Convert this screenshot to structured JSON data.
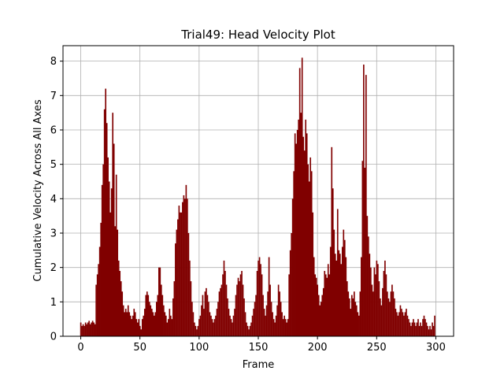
{
  "chart_data": {
    "type": "bar",
    "title": "Trial49: Head Velocity Plot",
    "xlabel": "Frame",
    "ylabel": "Cumulative Velocity Across All Axes",
    "x_ticks": [
      0,
      50,
      100,
      150,
      200,
      250,
      300
    ],
    "y_ticks": [
      0,
      1,
      2,
      3,
      4,
      5,
      6,
      7,
      8
    ],
    "xlim": [
      -15,
      315
    ],
    "ylim": [
      0,
      8.45
    ],
    "grid": true,
    "bar_color": "#800000",
    "x_start": 0,
    "x_step": 1,
    "values": [
      0.4,
      0.3,
      0.35,
      0.3,
      0.4,
      0.35,
      0.4,
      0.45,
      0.35,
      0.4,
      0.45,
      0.4,
      0.35,
      1.5,
      1.8,
      2.1,
      2.6,
      3.3,
      4.4,
      5.0,
      6.6,
      7.2,
      6.2,
      5.2,
      4.5,
      3.6,
      4.3,
      6.5,
      5.6,
      3.2,
      4.7,
      3.1,
      2.2,
      1.9,
      1.6,
      1.3,
      0.9,
      0.7,
      0.8,
      0.7,
      0.9,
      0.7,
      0.6,
      0.5,
      0.6,
      0.8,
      0.7,
      0.5,
      0.4,
      0.5,
      0.3,
      0.2,
      0.5,
      0.6,
      0.8,
      1.2,
      1.3,
      1.2,
      1.0,
      0.9,
      0.8,
      0.7,
      0.6,
      0.7,
      1.0,
      1.2,
      2.0,
      2.0,
      1.5,
      1.2,
      0.9,
      0.7,
      0.6,
      0.4,
      0.5,
      0.8,
      0.6,
      0.5,
      1.1,
      1.6,
      2.7,
      3.1,
      3.4,
      3.8,
      3.6,
      3.6,
      3.9,
      4.1,
      4.0,
      4.4,
      4.0,
      3.0,
      2.2,
      1.6,
      1.0,
      0.7,
      0.4,
      0.3,
      0.2,
      0.3,
      0.5,
      0.6,
      0.9,
      1.2,
      0.8,
      1.3,
      1.4,
      1.2,
      1.0,
      0.7,
      0.6,
      0.5,
      0.4,
      0.5,
      0.6,
      0.8,
      1.0,
      1.3,
      1.4,
      1.5,
      1.8,
      2.2,
      1.9,
      1.5,
      1.1,
      0.8,
      0.6,
      0.5,
      0.4,
      0.6,
      0.8,
      1.2,
      1.5,
      1.7,
      1.6,
      1.8,
      1.9,
      1.5,
      1.1,
      0.7,
      0.4,
      0.3,
      0.2,
      0.3,
      0.4,
      0.6,
      0.8,
      1.0,
      1.2,
      1.9,
      2.2,
      2.3,
      2.1,
      1.8,
      1.2,
      0.8,
      0.6,
      0.9,
      1.3,
      2.3,
      1.5,
      1.0,
      0.7,
      0.5,
      0.4,
      0.6,
      0.9,
      1.5,
      1.3,
      1.0,
      0.7,
      0.5,
      0.6,
      0.5,
      0.4,
      0.5,
      1.8,
      2.5,
      3.0,
      4.0,
      4.8,
      5.9,
      5.6,
      6.0,
      6.3,
      7.8,
      6.5,
      8.1,
      5.8,
      5.4,
      6.3,
      5.9,
      5.0,
      4.5,
      5.2,
      4.8,
      3.6,
      2.3,
      1.8,
      1.7,
      1.5,
      1.2,
      0.9,
      1.0,
      1.2,
      1.4,
      1.9,
      1.8,
      1.7,
      2.1,
      1.8,
      2.6,
      5.5,
      4.3,
      3.1,
      2.4,
      2.2,
      3.7,
      2.5,
      2.4,
      2.1,
      2.6,
      3.1,
      2.8,
      2.3,
      1.6,
      1.3,
      1.1,
      0.8,
      1.2,
      1.1,
      1.3,
      1.0,
      0.9,
      0.7,
      0.6,
      1.3,
      2.3,
      5.1,
      7.9,
      4.9,
      7.6,
      3.5,
      2.9,
      2.4,
      2.0,
      1.5,
      1.3,
      2.0,
      1.8,
      2.2,
      2.1,
      1.6,
      1.1,
      0.9,
      1.4,
      1.9,
      2.2,
      1.8,
      1.3,
      1.1,
      1.0,
      1.3,
      1.5,
      1.3,
      1.1,
      0.8,
      0.7,
      0.6,
      0.7,
      0.9,
      0.8,
      0.7,
      0.6,
      0.7,
      0.8,
      0.6,
      0.5,
      0.4,
      0.3,
      0.4,
      0.5,
      0.4,
      0.3,
      0.4,
      0.5,
      0.3,
      0.4,
      0.3,
      0.5,
      0.6,
      0.5,
      0.4,
      0.3,
      0.2,
      0.3,
      0.2,
      0.4,
      0.3,
      0.6
    ]
  }
}
